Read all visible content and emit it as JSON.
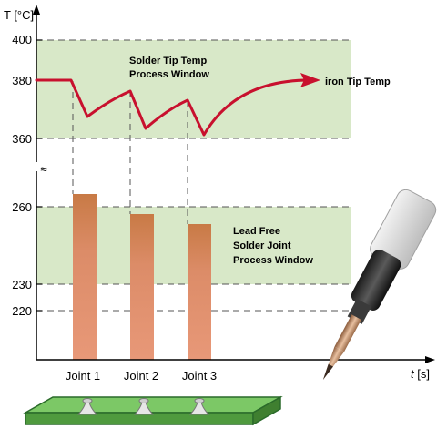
{
  "axes": {
    "y_label": "T [°C]",
    "x_label_italic": "t",
    "x_label_unit": " [s]",
    "y_ticks": [
      "400",
      "380",
      "360",
      "260",
      "230",
      "220"
    ],
    "break_symbol": "≈"
  },
  "windows": {
    "tip": {
      "line1": "Solder Tip Temp",
      "line2": "Process Window"
    },
    "joint": {
      "line1": "Lead Free",
      "line2": "Solder Joint",
      "line3": "Process Window"
    }
  },
  "curve_label": "iron Tip Temp",
  "joints": [
    "Joint 1",
    "Joint 2",
    "Joint 3"
  ],
  "colors": {
    "window": "#d8e8c8",
    "curve": "#c8102e",
    "bar": "#e08e70",
    "bar_top": "#c87a45",
    "board": "#6bb85a",
    "board_edge": "#2a6a2a",
    "axis": "#000000"
  }
}
